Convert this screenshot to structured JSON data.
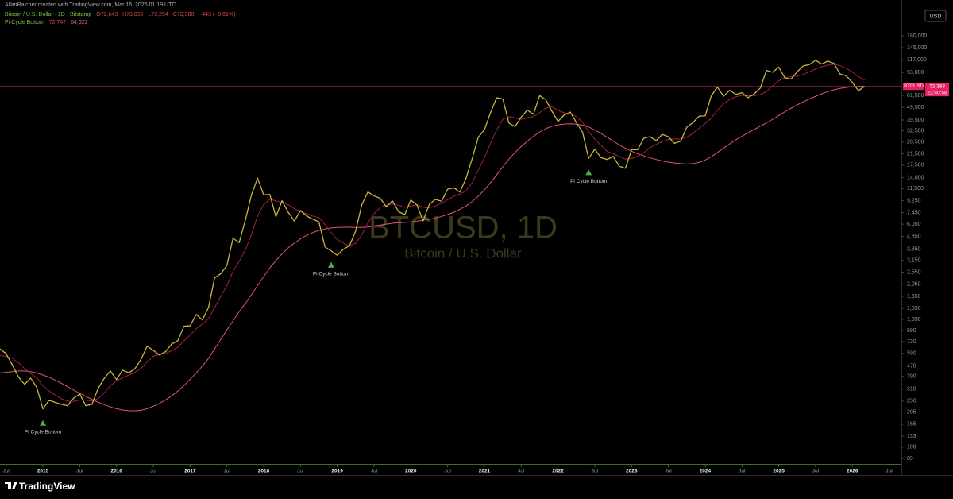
{
  "header": {
    "author_line": "AllanRaicher created with TradingView.com, Mar 16, 2026 01:19 UTC",
    "symbol_line": "Bitcoin / U.S. Dollar · 1D · Bitstamp",
    "ohlc": [
      "O72,643",
      "H73,035",
      "L72,294",
      "C72,388",
      "−443 (−0.61%)"
    ],
    "indicator": "Pi Cycle Bottom",
    "indicator_values": [
      "72,747",
      "64,622"
    ]
  },
  "footer": {
    "brand": "TradingView"
  },
  "chart_data": {
    "type": "line",
    "log_scale": true,
    "grid": false,
    "currency": "USD",
    "symbol_tag": "BTCUSD",
    "countdown": "22:40:58",
    "last_price": {
      "value": 72388,
      "label": "72,388"
    },
    "watermark": {
      "symbol": "BTCUSD, 1D",
      "description": "Bitcoin / U.S. Dollar"
    },
    "x": [
      "2014-06",
      "2014-07",
      "2014-08",
      "2014-09",
      "2014-10",
      "2014-11",
      "2014-12",
      "2015-01",
      "2015-02",
      "2015-03",
      "2015-04",
      "2015-05",
      "2015-06",
      "2015-07",
      "2015-08",
      "2015-09",
      "2015-10",
      "2015-11",
      "2015-12",
      "2016-01",
      "2016-02",
      "2016-03",
      "2016-04",
      "2016-05",
      "2016-06",
      "2016-07",
      "2016-08",
      "2016-09",
      "2016-10",
      "2016-11",
      "2016-12",
      "2017-01",
      "2017-02",
      "2017-03",
      "2017-04",
      "2017-05",
      "2017-06",
      "2017-07",
      "2017-08",
      "2017-09",
      "2017-10",
      "2017-11",
      "2017-12",
      "2018-01",
      "2018-02",
      "2018-03",
      "2018-04",
      "2018-05",
      "2018-06",
      "2018-07",
      "2018-08",
      "2018-09",
      "2018-10",
      "2018-11",
      "2018-12",
      "2019-01",
      "2019-02",
      "2019-03",
      "2019-04",
      "2019-05",
      "2019-06",
      "2019-07",
      "2019-08",
      "2019-09",
      "2019-10",
      "2019-11",
      "2019-12",
      "2020-01",
      "2020-02",
      "2020-03",
      "2020-04",
      "2020-05",
      "2020-06",
      "2020-07",
      "2020-08",
      "2020-09",
      "2020-10",
      "2020-11",
      "2020-12",
      "2021-01",
      "2021-02",
      "2021-03",
      "2021-04",
      "2021-05",
      "2021-06",
      "2021-07",
      "2021-08",
      "2021-09",
      "2021-10",
      "2021-11",
      "2021-12",
      "2022-01",
      "2022-02",
      "2022-03",
      "2022-04",
      "2022-05",
      "2022-06",
      "2022-07",
      "2022-08",
      "2022-09",
      "2022-10",
      "2022-11",
      "2022-12",
      "2023-01",
      "2023-02",
      "2023-03",
      "2023-04",
      "2023-05",
      "2023-06",
      "2023-07",
      "2023-08",
      "2023-09",
      "2023-10",
      "2023-11",
      "2023-12",
      "2024-01",
      "2024-02",
      "2024-03",
      "2024-04",
      "2024-05",
      "2024-06",
      "2024-07",
      "2024-08",
      "2024-09",
      "2024-10",
      "2024-11",
      "2024-12",
      "2025-01",
      "2025-02",
      "2025-03",
      "2025-04",
      "2025-05",
      "2025-06",
      "2025-07",
      "2025-08",
      "2025-09",
      "2025-10",
      "2025-11",
      "2025-12",
      "2026-01",
      "2026-02",
      "2026-03"
    ],
    "series": [
      {
        "color": "#c9b53e",
        "width": 1.3,
        "values": [
          640,
          587,
          480,
          387,
          338,
          378,
          320,
          217,
          254,
          244,
          236,
          230,
          263,
          284,
          230,
          236,
          314,
          377,
          430,
          368,
          437,
          416,
          448,
          531,
          673,
          624,
          573,
          609,
          700,
          742,
          963,
          970,
          1190,
          1079,
          1348,
          2300,
          2480,
          2875,
          4703,
          4339,
          6468,
          10233,
          13860,
          10265,
          10326,
          6926,
          9240,
          7494,
          6404,
          7730,
          7012,
          6626,
          6318,
          4017,
          3742,
          3457,
          3854,
          4105,
          5350,
          8574,
          10817,
          10085,
          9630,
          8293,
          9199,
          7569,
          7194,
          9350,
          8544,
          6424,
          8630,
          9455,
          9138,
          11351,
          11655,
          10779,
          13805,
          19700,
          28990,
          33114,
          45137,
          58918,
          57750,
          37332,
          35041,
          41626,
          47166,
          43790,
          61318,
          57005,
          46306,
          38483,
          43194,
          45538,
          37714,
          31792,
          19785,
          23336,
          20050,
          19423,
          20496,
          17168,
          16548,
          23139,
          23147,
          28478,
          29268,
          27219,
          30477,
          29230,
          25940,
          26967,
          34667,
          37712,
          42265,
          42580,
          61130,
          71333,
          60636,
          67491,
          62678,
          64619,
          58969,
          63329,
          70215,
          96405,
          93429,
          102405,
          84373,
          82548,
          94207,
          104638,
          107135,
          115758,
          108236,
          114056,
          109556,
          90394,
          87500,
          78000,
          67000,
          72388
        ]
      },
      {
        "color": "#a3213f",
        "width": 1,
        "values": [
          570,
          560,
          540,
          500,
          450,
          410,
          380,
          330,
          300,
          280,
          260,
          250,
          248,
          255,
          255,
          250,
          262,
          290,
          330,
          360,
          380,
          400,
          420,
          450,
          510,
          560,
          580,
          590,
          620,
          660,
          740,
          820,
          920,
          1000,
          1100,
          1350,
          1650,
          2000,
          2600,
          3100,
          3800,
          5000,
          7000,
          8600,
          9500,
          9200,
          9000,
          8600,
          8000,
          7600,
          7300,
          7000,
          6800,
          6000,
          5200,
          4600,
          4300,
          4100,
          4300,
          5000,
          6200,
          7300,
          8200,
          8500,
          8700,
          8500,
          8200,
          8400,
          8600,
          8200,
          8100,
          8400,
          8800,
          9400,
          10000,
          10400,
          11000,
          12800,
          16000,
          20000,
          26000,
          33000,
          40000,
          42000,
          41000,
          40000,
          41000,
          42000,
          45000,
          49000,
          50000,
          47000,
          45000,
          44000,
          42000,
          38000,
          32000,
          28000,
          25000,
          22500,
          21500,
          20500,
          19500,
          19800,
          20500,
          22000,
          24000,
          25500,
          26800,
          27800,
          28000,
          28000,
          29000,
          31000,
          34000,
          37000,
          41000,
          47000,
          53000,
          57000,
          60000,
          61500,
          61000,
          61000,
          62500,
          66000,
          73000,
          80000,
          85000,
          86000,
          87000,
          90000,
          94000,
          99000,
          103000,
          106000,
          108000,
          105000,
          100000,
          94000,
          86000,
          81000
        ]
      },
      {
        "color": "#e0566f",
        "width": 1,
        "values": [
          415,
          420,
          425,
          430,
          430,
          425,
          415,
          400,
          385,
          365,
          345,
          325,
          305,
          288,
          272,
          258,
          245,
          234,
          225,
          218,
          213,
          210,
          210,
          212,
          218,
          228,
          240,
          255,
          275,
          300,
          330,
          370,
          415,
          470,
          540,
          640,
          760,
          900,
          1060,
          1250,
          1450,
          1700,
          2000,
          2350,
          2750,
          3150,
          3550,
          3950,
          4300,
          4650,
          4950,
          5200,
          5400,
          5550,
          5650,
          5700,
          5720,
          5720,
          5700,
          5700,
          5750,
          5850,
          5950,
          6050,
          6150,
          6200,
          6250,
          6300,
          6400,
          6500,
          6600,
          6750,
          6950,
          7200,
          7500,
          7900,
          8400,
          9100,
          10000,
          11200,
          12800,
          14700,
          17000,
          19500,
          22000,
          24500,
          27000,
          29500,
          31800,
          33800,
          35300,
          36200,
          36700,
          36900,
          36700,
          36000,
          34800,
          33000,
          31000,
          29000,
          27000,
          25200,
          23700,
          22500,
          21500,
          20700,
          20000,
          19400,
          18900,
          18500,
          18200,
          18000,
          17900,
          18000,
          18400,
          19200,
          20400,
          22000,
          23800,
          25700,
          27600,
          29500,
          31400,
          33300,
          35300,
          37500,
          40000,
          42800,
          45800,
          48800,
          51800,
          54800,
          57700,
          60500,
          63200,
          65800,
          68000,
          69800,
          71000,
          71800,
          72300,
          72700
        ]
      }
    ],
    "annotations": [
      {
        "x": "2015-01",
        "text": "Pi Cycle Bottom",
        "color": "#4caf50"
      },
      {
        "x": "2018-12",
        "text": "Pi Cycle Bottom",
        "color": "#4caf50"
      },
      {
        "x": "2022-06",
        "text": "Pi Cycle Bottom",
        "color": "#4caf50"
      }
    ],
    "xlim": [
      "2014-06",
      "2026-09"
    ],
    "xticks": [
      {
        "value": "2014-07",
        "label": "Jul"
      },
      {
        "value": "2015-01",
        "label": "2015"
      },
      {
        "value": "2015-07",
        "label": "Jul"
      },
      {
        "value": "2016-01",
        "label": "2016"
      },
      {
        "value": "2016-07",
        "label": "Jul"
      },
      {
        "value": "2017-01",
        "label": "2017"
      },
      {
        "value": "2017-07",
        "label": "Jul"
      },
      {
        "value": "2018-01",
        "label": "2018"
      },
      {
        "value": "2018-07",
        "label": "Jul"
      },
      {
        "value": "2019-01",
        "label": "2019"
      },
      {
        "value": "2019-07",
        "label": "Jul"
      },
      {
        "value": "2020-01",
        "label": "2020"
      },
      {
        "value": "2020-07",
        "label": "Jul"
      },
      {
        "value": "2021-01",
        "label": "2021"
      },
      {
        "value": "2021-07",
        "label": "Jul"
      },
      {
        "value": "2022-01",
        "label": "2022"
      },
      {
        "value": "2022-07",
        "label": "Jul"
      },
      {
        "value": "2023-01",
        "label": "2023"
      },
      {
        "value": "2023-07",
        "label": "Jul"
      },
      {
        "value": "2024-01",
        "label": "2024"
      },
      {
        "value": "2024-07",
        "label": "Jul"
      },
      {
        "value": "2025-01",
        "label": "2025"
      },
      {
        "value": "2025-07",
        "label": "Jul"
      },
      {
        "value": "2026-01",
        "label": "2026"
      },
      {
        "value": "2026-07",
        "label": "Jul"
      }
    ],
    "ylim": [
      79.4,
      297000
    ],
    "yticks": [
      89,
      109,
      133,
      165,
      205,
      250,
      310,
      390,
      470,
      590,
      730,
      890,
      {
        "value": 1090,
        "label": "1,090"
      },
      {
        "value": 1330,
        "label": "1,330"
      },
      {
        "value": 1650,
        "label": "1,650"
      },
      {
        "value": 2050,
        "label": "2,050"
      },
      {
        "value": 2550,
        "label": "2,550"
      },
      {
        "value": 3150,
        "label": "3,150"
      },
      {
        "value": 3850,
        "label": "3,850"
      },
      {
        "value": 4850,
        "label": "4,850"
      },
      {
        "value": 6050,
        "label": "6,050"
      },
      {
        "value": 7450,
        "label": "7,450"
      },
      {
        "value": 9250,
        "label": "9,250"
      },
      {
        "value": 11500,
        "label": "11,500"
      },
      {
        "value": 14000,
        "label": "14,000"
      },
      {
        "value": 17500,
        "label": "17,500"
      },
      {
        "value": 21500,
        "label": "21,500"
      },
      {
        "value": 26500,
        "label": "26,500"
      },
      {
        "value": 32500,
        "label": "32,500"
      },
      {
        "value": 39500,
        "label": "39,500"
      },
      {
        "value": 49500,
        "label": "49,500"
      },
      {
        "value": 61500,
        "label": "61,500"
      },
      {
        "value": 93000,
        "label": "93,000"
      },
      {
        "value": 117000,
        "label": "117,000"
      },
      {
        "value": 145000,
        "label": "145,000"
      },
      {
        "value": 180000,
        "label": "180,000"
      }
    ]
  }
}
